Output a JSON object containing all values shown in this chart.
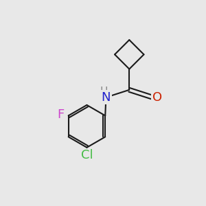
{
  "background_color": "#e8e8e8",
  "bond_color": "#1a1a1a",
  "bond_width": 1.5,
  "atom_colors": {
    "N": "#2222cc",
    "O": "#cc2200",
    "F": "#cc44cc",
    "Cl": "#44bb44",
    "H": "#888888"
  }
}
